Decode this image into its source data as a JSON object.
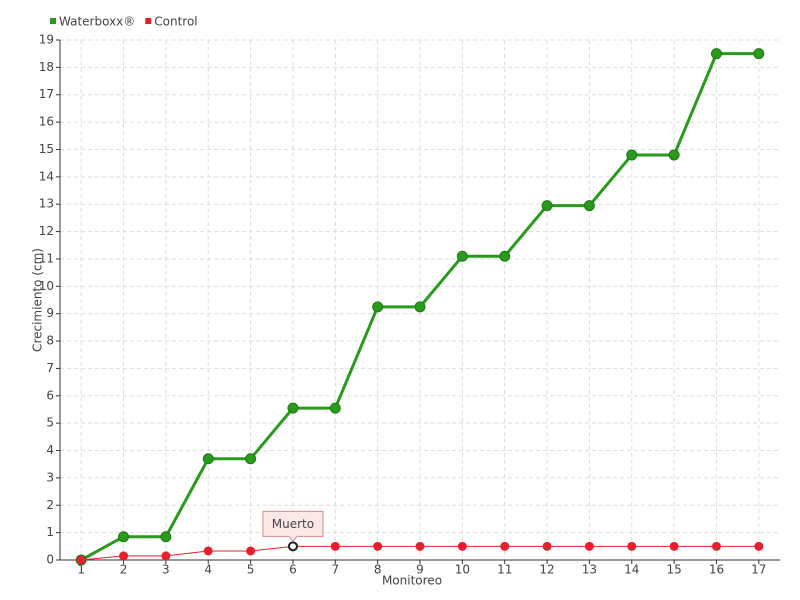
{
  "chart_data": {
    "type": "line",
    "x_label": "Monitoreo",
    "y_label": "Crecimiento (cm)",
    "categories": [
      "1",
      "2",
      "3",
      "4",
      "5",
      "6",
      "7",
      "8",
      "9",
      "10",
      "11",
      "12",
      "13",
      "14",
      "15",
      "16",
      "17"
    ],
    "series": [
      {
        "name": "Waterboxx®",
        "color": "#2a9a1c",
        "values": [
          0,
          0.85,
          0.85,
          3.7,
          3.7,
          5.55,
          5.55,
          9.25,
          9.25,
          11.1,
          11.1,
          12.95,
          12.95,
          14.8,
          14.8,
          18.5,
          18.5
        ]
      },
      {
        "name": "Control",
        "color": "#e8202e",
        "values": [
          0,
          0.15,
          0.15,
          0.33,
          0.33,
          0.5,
          0.5,
          0.5,
          0.5,
          0.5,
          0.5,
          0.5,
          0.5,
          0.5,
          0.5,
          0.5,
          0.5
        ]
      }
    ],
    "annotations": [
      {
        "label": "Muerto",
        "series": 1,
        "point": 5
      }
    ],
    "ylim": [
      0,
      19
    ],
    "yticks": [
      0,
      1,
      2,
      3,
      4,
      5,
      6,
      7,
      8,
      9,
      10,
      11,
      12,
      13,
      14,
      15,
      16,
      17,
      18,
      19
    ],
    "grid": true,
    "legend": "top-left"
  }
}
